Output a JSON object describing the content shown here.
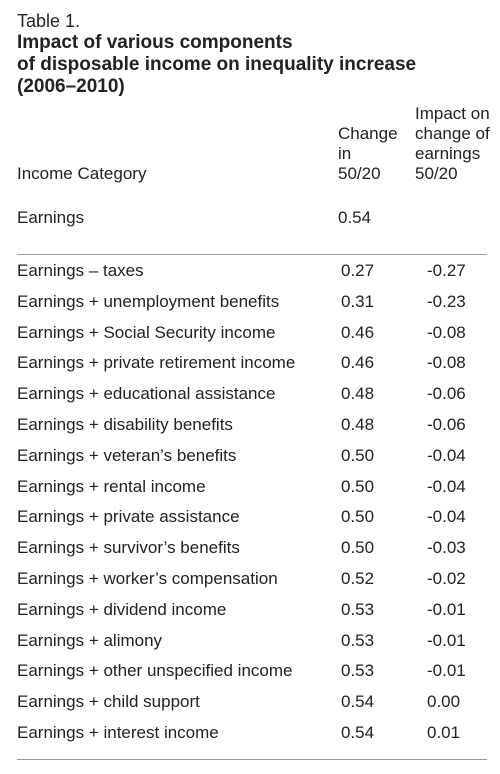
{
  "table": {
    "label": "Table 1.",
    "title_lines": [
      "Impact of various components",
      "of disposable income on inequality increase",
      "(2006–2010)"
    ],
    "headers": {
      "category": "Income Category",
      "col1_lines": [
        "Change",
        "in",
        "50/20"
      ],
      "col2_lines": [
        "Impact on",
        "change of",
        "earnings",
        "50/20"
      ]
    },
    "earnings_row": {
      "name": "Earnings",
      "change": "0.54"
    },
    "rows": [
      {
        "name": "Earnings – taxes",
        "change": "0.27",
        "impact": "-0.27"
      },
      {
        "name": "Earnings + unemployment benefits",
        "change": "0.31",
        "impact": "-0.23"
      },
      {
        "name": "Earnings + Social Security income",
        "change": "0.46",
        "impact": "-0.08"
      },
      {
        "name": "Earnings + private retirement income",
        "change": "0.46",
        "impact": "-0.08"
      },
      {
        "name": "Earnings + educational assistance",
        "change": "0.48",
        "impact": "-0.06"
      },
      {
        "name": "Earnings + disability benefits",
        "change": "0.48",
        "impact": "-0.06"
      },
      {
        "name": "Earnings + veteran’s benefits",
        "change": "0.50",
        "impact": "-0.04"
      },
      {
        "name": "Earnings + rental income",
        "change": "0.50",
        "impact": "-0.04"
      },
      {
        "name": "Earnings + private assistance",
        "change": "0.50",
        "impact": "-0.04"
      },
      {
        "name": "Earnings + survivor’s benefits",
        "change": "0.50",
        "impact": "-0.03"
      },
      {
        "name": "Earnings + worker’s compensation",
        "change": "0.52",
        "impact": "-0.02"
      },
      {
        "name": "Earnings + dividend income",
        "change": "0.53",
        "impact": "-0.01"
      },
      {
        "name": "Earnings + alimony",
        "change": "0.53",
        "impact": "-0.01"
      },
      {
        "name": "Earnings + other unspecified income",
        "change": "0.53",
        "impact": "-0.01"
      },
      {
        "name": "Earnings + child support",
        "change": "0.54",
        "impact": "0.00"
      },
      {
        "name": "Earnings + interest income",
        "change": "0.54",
        "impact": "0.01"
      }
    ]
  }
}
